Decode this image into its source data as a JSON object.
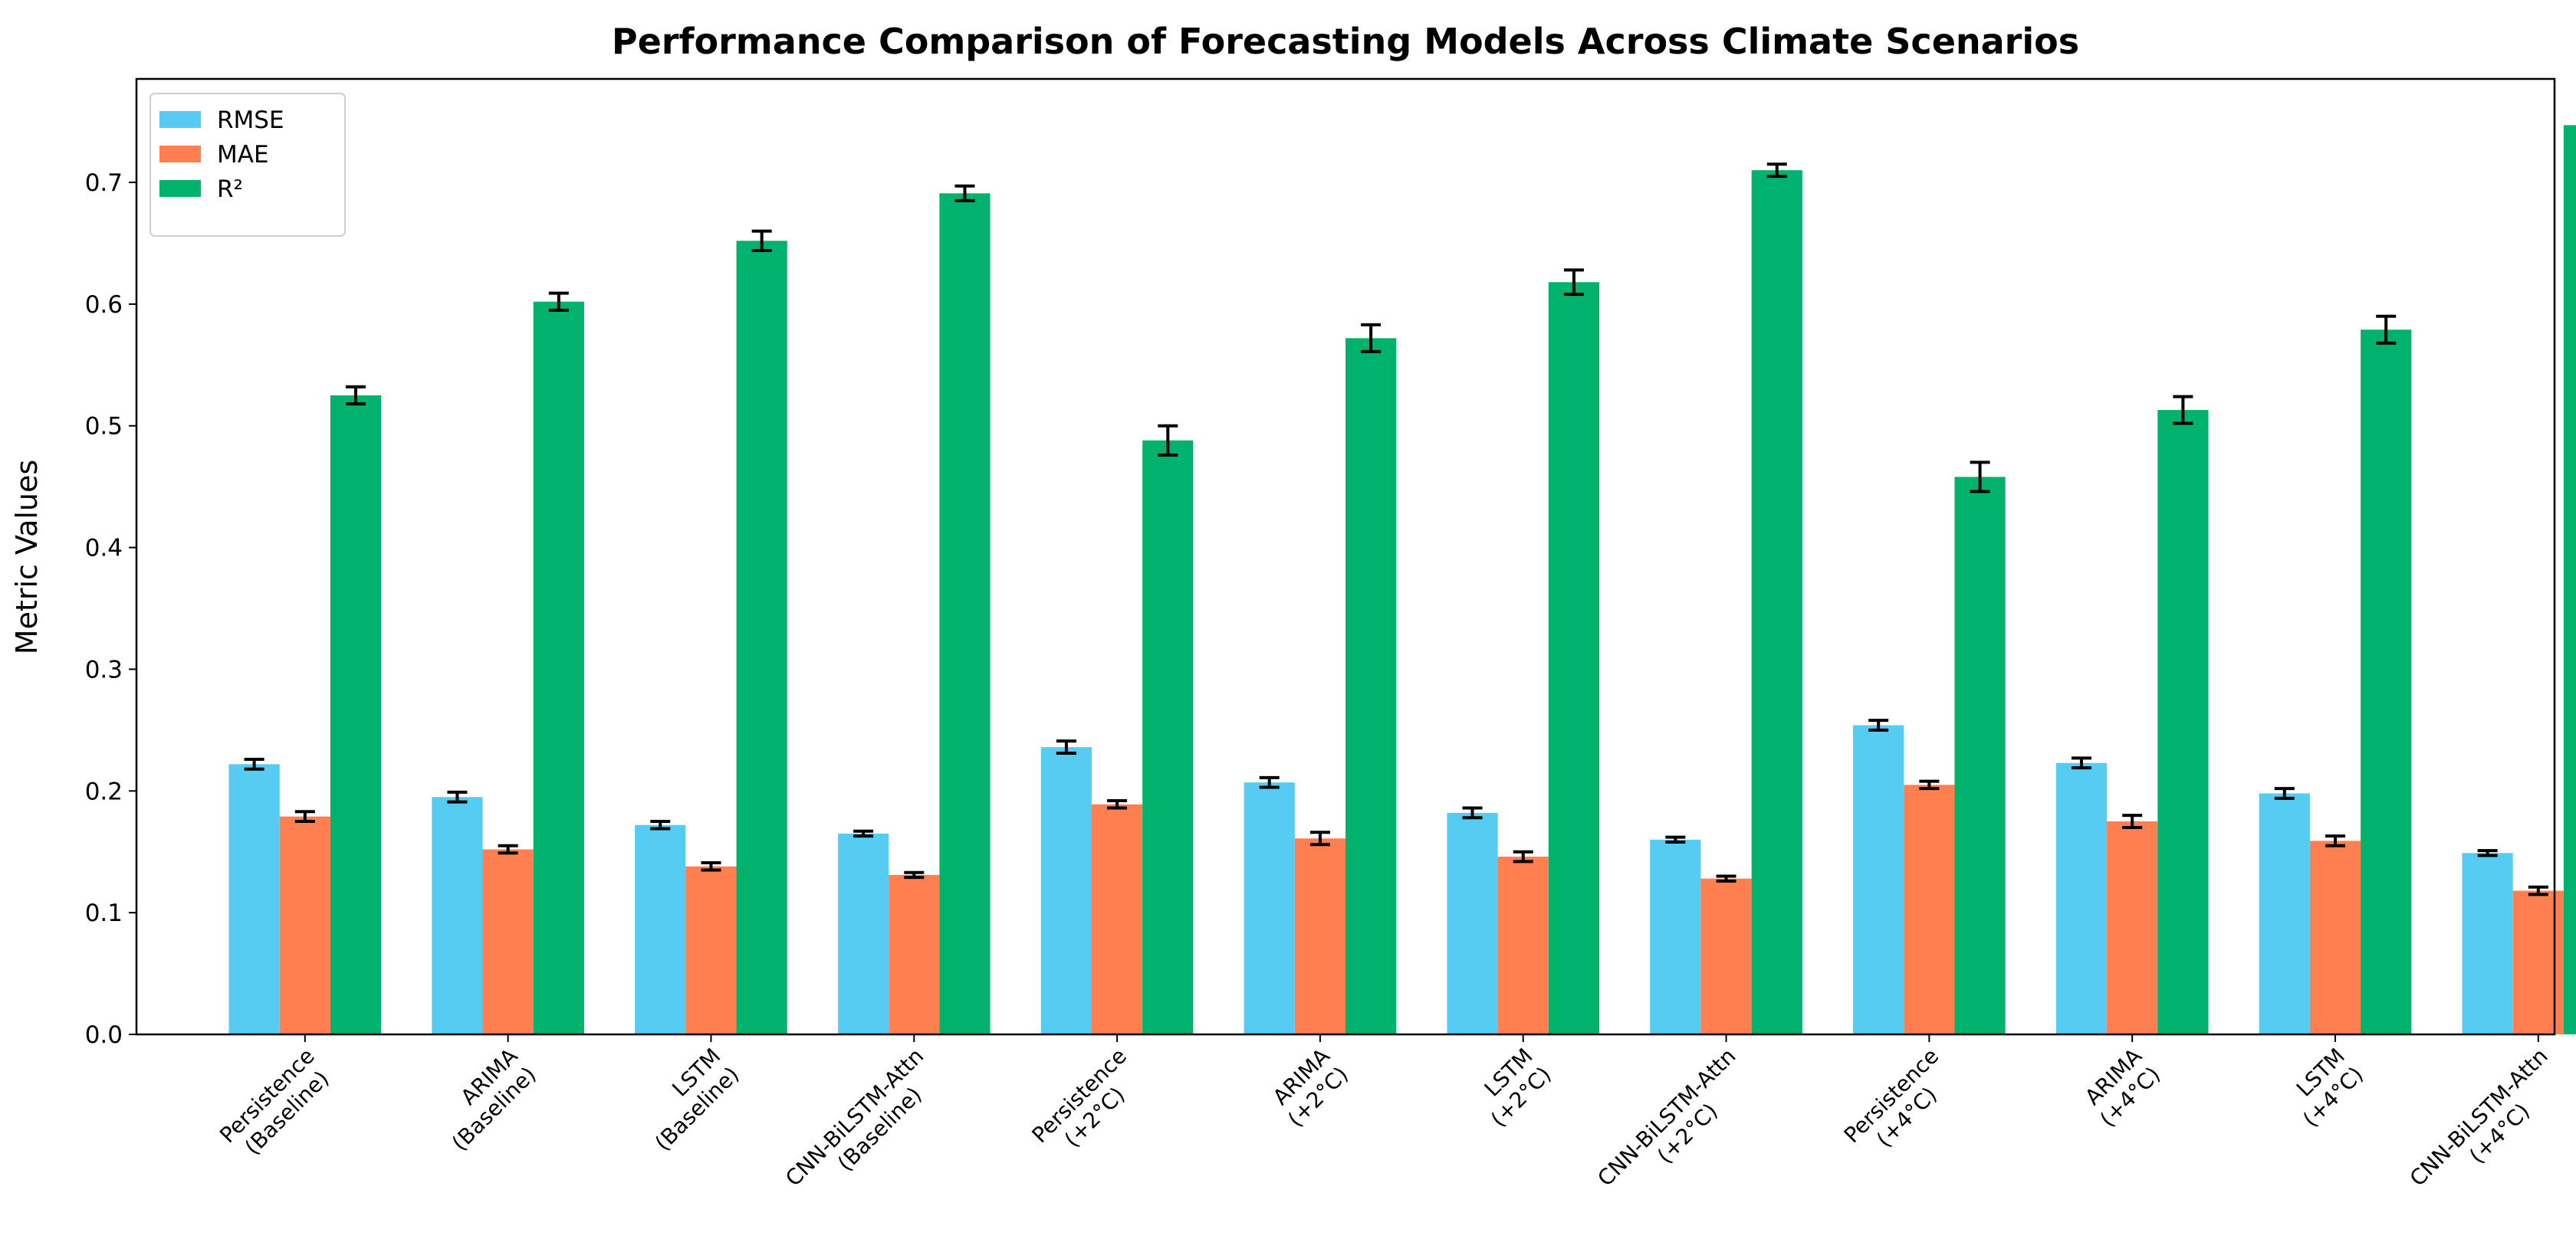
{
  "chart_data": {
    "type": "bar",
    "title": "Performance Comparison of Forecasting Models Across Climate Scenarios",
    "xlabel": "",
    "ylabel": "Metric Values",
    "ylim": [
      0,
      0.785
    ],
    "yticks": [
      0.0,
      0.1,
      0.2,
      0.3,
      0.4,
      0.5,
      0.6,
      0.7
    ],
    "ytick_labels": [
      "0.0",
      "0.1",
      "0.2",
      "0.3",
      "0.4",
      "0.5",
      "0.6",
      "0.7"
    ],
    "grid": false,
    "legend_position": "top-left",
    "categories": [
      [
        "Persistence",
        "(Baseline)"
      ],
      [
        "ARIMA",
        "(Baseline)"
      ],
      [
        "LSTM",
        "(Baseline)"
      ],
      [
        "CNN-BiLSTM-Attn",
        "(Baseline)"
      ],
      [
        "Persistence",
        "(+2°C)"
      ],
      [
        "ARIMA",
        "(+2°C)"
      ],
      [
        "LSTM",
        "(+2°C)"
      ],
      [
        "CNN-BiLSTM-Attn",
        "(+2°C)"
      ],
      [
        "Persistence",
        "(+4°C)"
      ],
      [
        "ARIMA",
        "(+4°C)"
      ],
      [
        "LSTM",
        "(+4°C)"
      ],
      [
        "CNN-BiLSTM-Attn",
        "(+4°C)"
      ]
    ],
    "series": [
      {
        "name": "RMSE",
        "color": "#56CCF2",
        "values": [
          0.222,
          0.195,
          0.172,
          0.165,
          0.236,
          0.207,
          0.182,
          0.16,
          0.254,
          0.223,
          0.198,
          0.149
        ],
        "errors": [
          0.004,
          0.004,
          0.003,
          0.002,
          0.005,
          0.004,
          0.004,
          0.002,
          0.004,
          0.004,
          0.004,
          0.002
        ]
      },
      {
        "name": "MAE",
        "color": "#FF7F50",
        "values": [
          0.179,
          0.152,
          0.138,
          0.131,
          0.189,
          0.161,
          0.146,
          0.128,
          0.205,
          0.175,
          0.159,
          0.118
        ],
        "errors": [
          0.004,
          0.003,
          0.003,
          0.002,
          0.003,
          0.005,
          0.004,
          0.002,
          0.003,
          0.005,
          0.004,
          0.003
        ]
      },
      {
        "name": "R²",
        "color": "#00B26B",
        "values": [
          0.525,
          0.602,
          0.652,
          0.691,
          0.488,
          0.572,
          0.618,
          0.71,
          0.458,
          0.513,
          0.579,
          0.747
        ],
        "errors": [
          0.007,
          0.007,
          0.008,
          0.006,
          0.012,
          0.011,
          0.01,
          0.005,
          0.012,
          0.011,
          0.011,
          0.005
        ]
      }
    ]
  }
}
